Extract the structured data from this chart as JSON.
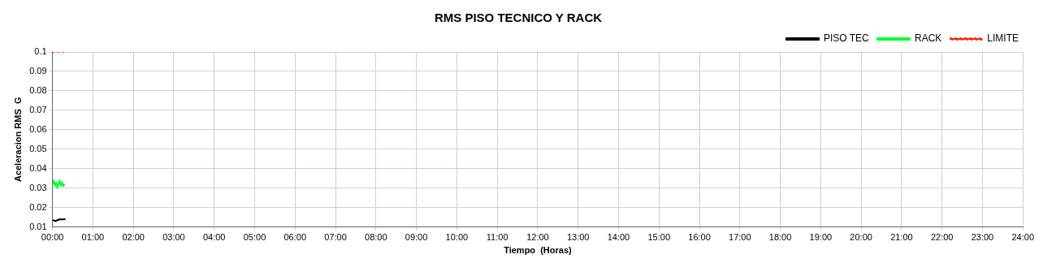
{
  "chart_data": {
    "type": "line",
    "title": "RMS PISO TECNICO Y RACK",
    "xlabel": "Tiempo  (Horas)",
    "ylabel": "Aceleracion RMS  G",
    "legend": "top right",
    "grid": true,
    "marker": "none",
    "xlim": [
      0,
      24
    ],
    "ylim": [
      0.01,
      0.1
    ],
    "xticks": [
      {
        "value": 0,
        "label": "00:00"
      },
      {
        "value": 1,
        "label": "01:00"
      },
      {
        "value": 2,
        "label": "02:00"
      },
      {
        "value": 3,
        "label": "03:00"
      },
      {
        "value": 4,
        "label": "04:00"
      },
      {
        "value": 5,
        "label": "05:00"
      },
      {
        "value": 6,
        "label": "06:00"
      },
      {
        "value": 7,
        "label": "07:00"
      },
      {
        "value": 8,
        "label": "08:00"
      },
      {
        "value": 9,
        "label": "09:00"
      },
      {
        "value": 10,
        "label": "10:00"
      },
      {
        "value": 11,
        "label": "11:00"
      },
      {
        "value": 12,
        "label": "12:00"
      },
      {
        "value": 13,
        "label": "13:00"
      },
      {
        "value": 14,
        "label": "14:00"
      },
      {
        "value": 15,
        "label": "15:00"
      },
      {
        "value": 16,
        "label": "16:00"
      },
      {
        "value": 17,
        "label": "17:00"
      },
      {
        "value": 18,
        "label": "18:00"
      },
      {
        "value": 19,
        "label": "19:00"
      },
      {
        "value": 20,
        "label": "20:00"
      },
      {
        "value": 21,
        "label": "21:00"
      },
      {
        "value": 22,
        "label": "22:00"
      },
      {
        "value": 23,
        "label": "23:00"
      },
      {
        "value": 24,
        "label": "24:00"
      }
    ],
    "yticks": [
      0.01,
      0.02,
      0.03,
      0.04,
      0.05,
      0.06,
      0.07,
      0.08,
      0.09,
      0.1
    ],
    "series": [
      {
        "name": "PISO TEC",
        "color": "#000000",
        "line_style": "solid",
        "x": [
          0,
          0.04,
          0.08,
          0.12,
          0.16,
          0.2,
          0.24,
          0.28,
          0.32
        ],
        "values": [
          0.0135,
          0.0133,
          0.013,
          0.0135,
          0.0138,
          0.014,
          0.0138,
          0.014,
          0.014
        ]
      },
      {
        "name": "RACK",
        "color": "#00ff33",
        "line_style": "solid",
        "x": [
          0,
          0.03,
          0.06,
          0.09,
          0.12,
          0.15,
          0.18,
          0.21,
          0.24,
          0.27,
          0.3
        ],
        "values": [
          0.032,
          0.034,
          0.031,
          0.033,
          0.03,
          0.032,
          0.034,
          0.031,
          0.033,
          0.031,
          0.032
        ]
      },
      {
        "name": "LIMITE",
        "color": "#ff2200",
        "line_style": "dotted",
        "x": [
          0,
          0.08,
          0.16,
          0.24,
          0.32
        ],
        "values": [
          0.1,
          0.1,
          0.1,
          0.1,
          0.1
        ]
      }
    ]
  }
}
